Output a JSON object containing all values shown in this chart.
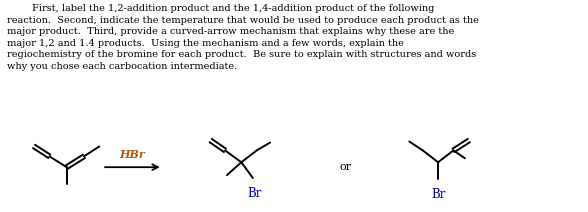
{
  "title_text": "        First, label the 1,2-addition product and the 1,4-addition product of the following\nreaction.  Second, indicate the temperature that would be used to produce each product as the\nmajor product.  Third, provide a curved-arrow mechanism that explains why these are the\nmajor 1,2 and 1.4 products.  Using the mechanism and a few words, explain the\nregiochemistry of the bromine for each product.  Be sure to explain with structures and words\nwhy you chose each carbocation intermediate.",
  "reagent": "HBr",
  "or_text": "or",
  "br_text": "Br",
  "bg_color": "#ffffff",
  "line_color": "#000000",
  "hbr_color": "#b35900",
  "br_label_color": "#0000bb",
  "text_color": "#000000",
  "fig_width": 5.88,
  "fig_height": 2.12,
  "dpi": 100
}
